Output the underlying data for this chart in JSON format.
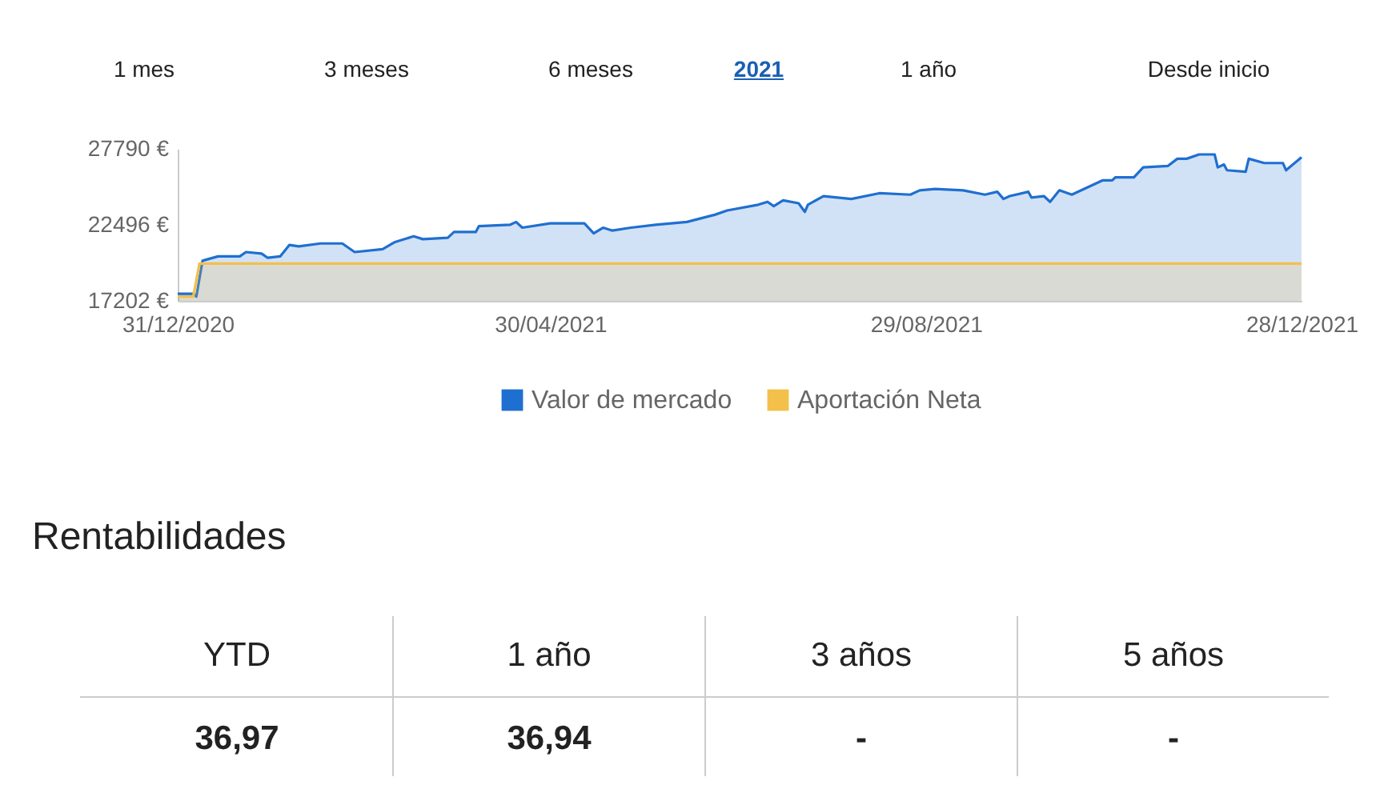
{
  "chart_data": {
    "type": "area",
    "legend": "bottom",
    "grid": false,
    "ylim": [
      17202,
      27790
    ],
    "yticks": [
      {
        "value": 17202,
        "label": "17202 €"
      },
      {
        "value": 22496,
        "label": "22496 €"
      },
      {
        "value": 27790,
        "label": "27790 €"
      }
    ],
    "xlim": [
      "2020-12-31",
      "2021-12-28"
    ],
    "xticks": [
      {
        "value": "2020-12-31",
        "label": "31/12/2020"
      },
      {
        "value": "2021-04-30",
        "label": "30/04/2021"
      },
      {
        "value": "2021-08-29",
        "label": "29/08/2021"
      },
      {
        "value": "2021-12-28",
        "label": "28/12/2021"
      }
    ],
    "series": [
      {
        "name": "Valor de mercado",
        "color": "#1f6fd0",
        "x": [
          "2020-12-31",
          "2021-01-05",
          "2021-01-06",
          "2021-01-08",
          "2021-01-13",
          "2021-01-20",
          "2021-01-22",
          "2021-01-27",
          "2021-01-29",
          "2021-02-02",
          "2021-02-05",
          "2021-02-08",
          "2021-02-15",
          "2021-02-22",
          "2021-02-26",
          "2021-03-07",
          "2021-03-11",
          "2021-03-17",
          "2021-03-20",
          "2021-03-28",
          "2021-03-30",
          "2021-04-06",
          "2021-04-07",
          "2021-04-17",
          "2021-04-19",
          "2021-04-21",
          "2021-04-30",
          "2021-05-11",
          "2021-05-14",
          "2021-05-17",
          "2021-05-20",
          "2021-05-26",
          "2021-06-03",
          "2021-06-13",
          "2021-06-22",
          "2021-06-26",
          "2021-07-06",
          "2021-07-09",
          "2021-07-11",
          "2021-07-14",
          "2021-07-19",
          "2021-07-21",
          "2021-07-22",
          "2021-07-27",
          "2021-08-05",
          "2021-08-14",
          "2021-08-24",
          "2021-08-27",
          "2021-09-01",
          "2021-09-10",
          "2021-09-17",
          "2021-09-21",
          "2021-09-23",
          "2021-09-25",
          "2021-10-01",
          "2021-10-02",
          "2021-10-06",
          "2021-10-08",
          "2021-10-11",
          "2021-10-15",
          "2021-10-20",
          "2021-10-25",
          "2021-10-28",
          "2021-10-29",
          "2021-11-04",
          "2021-11-07",
          "2021-11-15",
          "2021-11-18",
          "2021-11-21",
          "2021-11-25",
          "2021-11-30",
          "2021-12-01",
          "2021-12-03",
          "2021-12-04",
          "2021-12-10",
          "2021-12-11",
          "2021-12-16",
          "2021-12-22",
          "2021-12-23",
          "2021-12-28"
        ],
        "values": [
          17700,
          17700,
          17500,
          20000,
          20300,
          20300,
          20600,
          20500,
          20200,
          20300,
          21100,
          21000,
          21200,
          21200,
          20600,
          20800,
          21300,
          21700,
          21500,
          21600,
          22000,
          22000,
          22400,
          22500,
          22700,
          22300,
          22600,
          22600,
          21900,
          22300,
          22100,
          22300,
          22500,
          22700,
          23200,
          23500,
          23900,
          24100,
          23800,
          24200,
          24000,
          23400,
          23900,
          24500,
          24300,
          24700,
          24600,
          24900,
          25000,
          24900,
          24600,
          24800,
          24300,
          24500,
          24800,
          24400,
          24500,
          24100,
          24900,
          24600,
          25100,
          25600,
          25600,
          25800,
          25800,
          26500,
          26600,
          27100,
          27100,
          27400,
          27400,
          26500,
          26700,
          26300,
          26200,
          27100,
          26800,
          26800,
          26300,
          27200
        ]
      },
      {
        "name": "Aportación Neta",
        "color": "#f3c04a",
        "x": [
          "2020-12-31",
          "2021-01-05",
          "2021-01-07",
          "2021-12-28"
        ],
        "values": [
          17500,
          17500,
          19800,
          19800
        ]
      }
    ],
    "annotations": [
      "1 mes",
      "3 meses",
      "6 meses",
      "2021",
      "1 año",
      "Desde inicio",
      "Rentabilidades",
      "YTD",
      "1 año",
      "3 años",
      "5 años",
      "36,97",
      "36,94",
      "-",
      "-"
    ]
  }
}
